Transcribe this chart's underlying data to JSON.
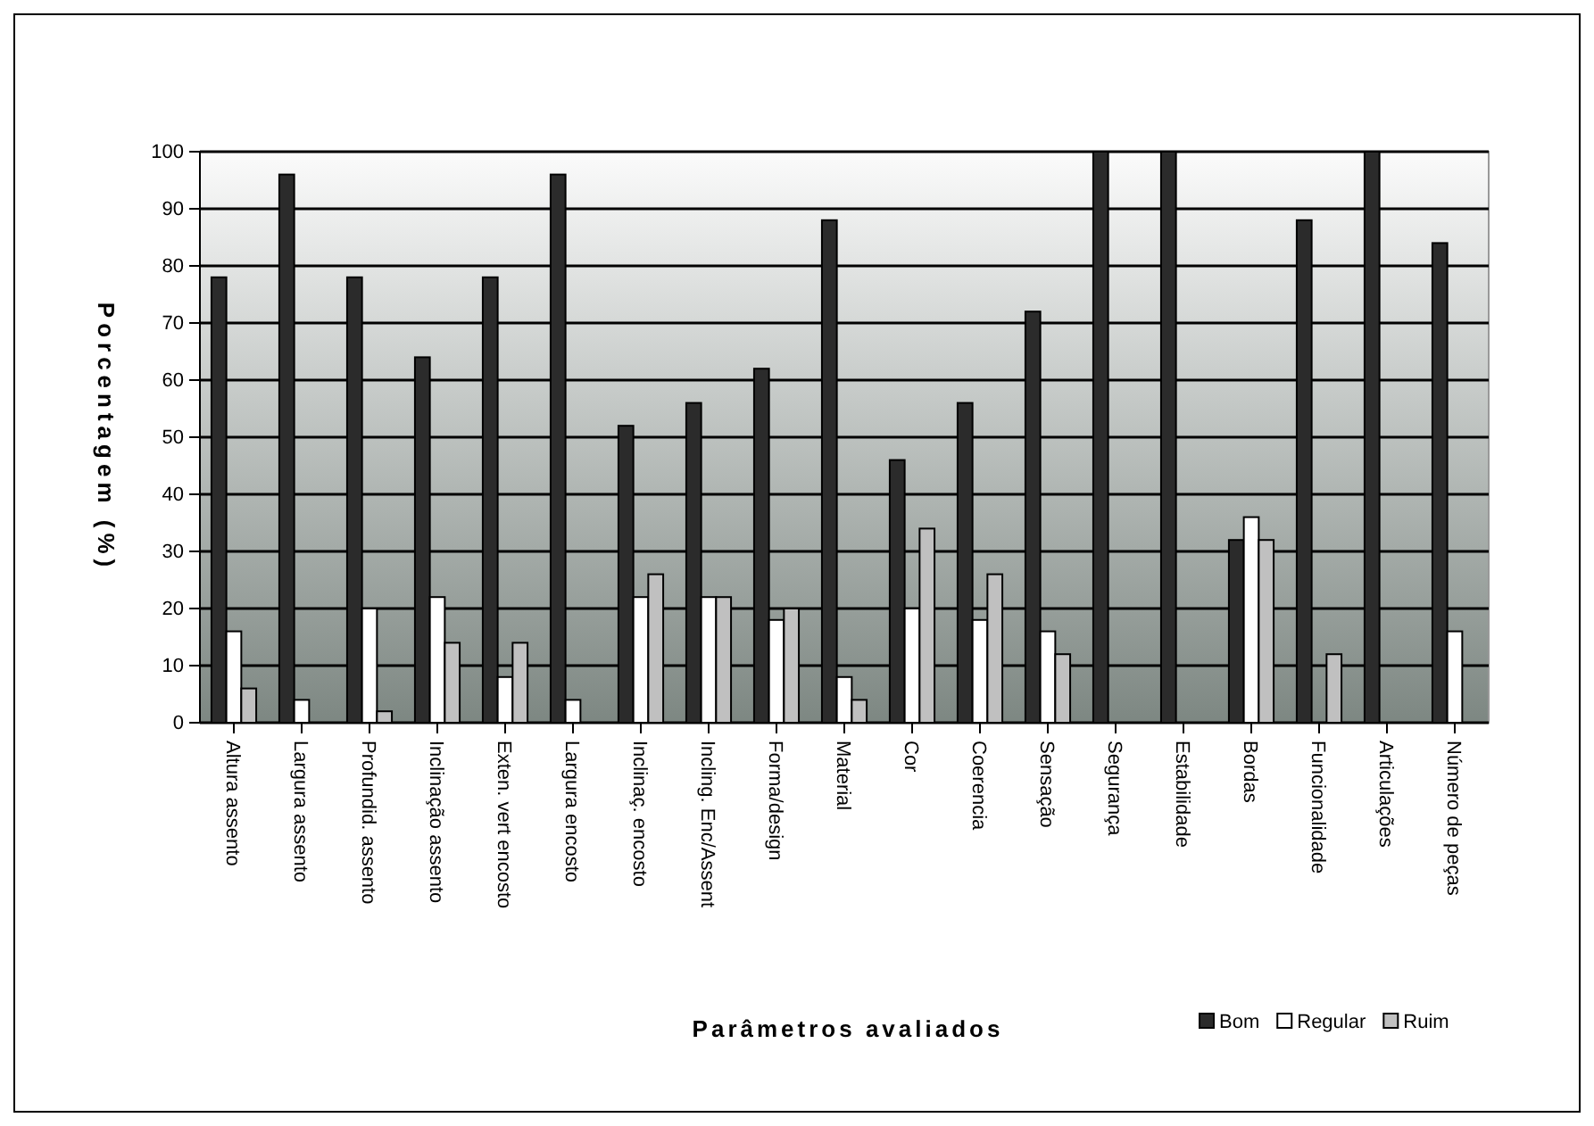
{
  "chart_data": {
    "type": "bar",
    "xlabel": "Parâmetros avaliados",
    "ylabel": "Porcentagem (%)",
    "categories": [
      "Altura assento",
      "Largura assento",
      "Profundid. assento",
      "Inclinação assento",
      "Exten. vert encosto",
      "Largura encosto",
      "Inclinaç. encosto",
      "Incling. Enc/Assent",
      "Forma/design",
      "Material",
      "Cor",
      "Coerencia",
      "Sensação",
      "Segurança",
      "Estabilidade",
      "Bordas",
      "Funcionalidade",
      "Articulações",
      "Número de peças"
    ],
    "series": [
      {
        "name": "Bom",
        "color": "#2b2b2b",
        "values": [
          78,
          96,
          78,
          64,
          78,
          96,
          52,
          56,
          62,
          88,
          46,
          56,
          72,
          100,
          100,
          32,
          88,
          100,
          84
        ]
      },
      {
        "name": "Regular",
        "color": "#ffffff",
        "values": [
          16,
          4,
          20,
          22,
          8,
          4,
          22,
          22,
          18,
          8,
          20,
          18,
          16,
          0,
          0,
          36,
          0,
          0,
          16
        ]
      },
      {
        "name": "Ruim",
        "color": "#c0c0c0",
        "values": [
          6,
          0,
          2,
          14,
          14,
          0,
          26,
          22,
          20,
          4,
          34,
          26,
          12,
          0,
          0,
          32,
          12,
          0,
          0
        ]
      }
    ],
    "ylim": [
      0,
      100
    ],
    "yticks": [
      0,
      10,
      20,
      30,
      40,
      50,
      60,
      70,
      80,
      90,
      100
    ],
    "grid": "y",
    "legend": "bottom right"
  }
}
